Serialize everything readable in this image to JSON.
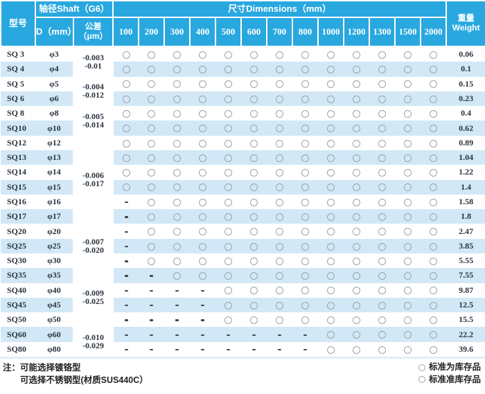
{
  "table": {
    "header": {
      "model": "型号",
      "shaft_group": "轴径Shaft（G6）",
      "diameter": "D（mm）",
      "tolerance_line1": "公差",
      "tolerance_line2": "（μm）",
      "dimensions_group": "尺寸Dimensions（mm）",
      "weight_line1": "重量",
      "weight_line2": "Weight",
      "dimension_columns": [
        "100",
        "200",
        "300",
        "400",
        "500",
        "600",
        "700",
        "800",
        "1000",
        "1200",
        "1300",
        "1500",
        "2000"
      ]
    },
    "rows": [
      {
        "model": "SQ 3",
        "diameter": "φ3",
        "avail": "ccccccccccccc",
        "weight": "0.06",
        "tol": {
          "span": 2,
          "l1": "-0.003",
          "l2": "-0.01"
        }
      },
      {
        "model": "SQ 4",
        "diameter": "φ4",
        "avail": "ccccccccccccc",
        "weight": "0.1"
      },
      {
        "model": "SQ 5",
        "diameter": "φ5",
        "avail": "ccccccccccccc",
        "weight": "0.15",
        "tol": {
          "span": 2,
          "l1": "-0.004",
          "l2": "-0.012"
        }
      },
      {
        "model": "SQ 6",
        "diameter": "φ6",
        "avail": "ccccccccccccc",
        "weight": "0.23"
      },
      {
        "model": "SQ 8",
        "diameter": "φ8",
        "avail": "ccccccccccccc",
        "weight": "0.4",
        "tol": {
          "span": 2,
          "l1": "-0.005",
          "l2": "-0.014"
        }
      },
      {
        "model": "SQ10",
        "diameter": "φ10",
        "avail": "ccccccccccccc",
        "weight": "0.62"
      },
      {
        "model": "SQ12",
        "diameter": "φ12",
        "avail": "ccccccccccccc",
        "weight": "0.89",
        "tol": {
          "span": 6,
          "l1": "-0.006",
          "l2": "-0.017"
        }
      },
      {
        "model": "SQ13",
        "diameter": "φ13",
        "avail": "ccccccccccccc",
        "weight": "1.04"
      },
      {
        "model": "SQ14",
        "diameter": "φ14",
        "avail": "ccccccccccccc",
        "weight": "1.22"
      },
      {
        "model": "SQ15",
        "diameter": "φ15",
        "avail": "ccccccccccccc",
        "weight": "1.4"
      },
      {
        "model": "SQ16",
        "diameter": "φ16",
        "avail": "dcccccccccccc",
        "weight": "1.58"
      },
      {
        "model": "SQ17",
        "diameter": "φ17",
        "avail": "dcccccccccccc",
        "weight": "1.8"
      },
      {
        "model": "SQ20",
        "diameter": "φ20",
        "avail": "dcccccccccccc",
        "weight": "2.47",
        "tol": {
          "span": 3,
          "l1": "-0.007",
          "l2": "-0.020"
        }
      },
      {
        "model": "SQ25",
        "diameter": "φ25",
        "avail": "dcccccccccccc",
        "weight": "3.85"
      },
      {
        "model": "SQ30",
        "diameter": "φ30",
        "avail": "dcccccccccccc",
        "weight": "5.55"
      },
      {
        "model": "SQ35",
        "diameter": "φ35",
        "avail": "ddccccccccccc",
        "weight": "7.55",
        "tol": {
          "span": 4,
          "l1": "-0.009",
          "l2": "-0.025"
        }
      },
      {
        "model": "SQ40",
        "diameter": "φ40",
        "avail": "ddddccccccccc",
        "weight": "9.87"
      },
      {
        "model": "SQ45",
        "diameter": "φ45",
        "avail": "ddddccccccccc",
        "weight": "12.5"
      },
      {
        "model": "SQ50",
        "diameter": "φ50",
        "avail": "ddddccccccccc",
        "weight": "15.5"
      },
      {
        "model": "SQ60",
        "diameter": "φ60",
        "avail": "ddddddddccccc",
        "weight": "22.2",
        "tol": {
          "span": 2,
          "l1": "-0.010",
          "l2": "-0.029"
        }
      },
      {
        "model": "SQ80",
        "diameter": "φ80",
        "avail": "ddddddddccccc",
        "weight": "39.6"
      }
    ]
  },
  "footer": {
    "note_label": "注：",
    "note_line1": "可能选择镀铬型",
    "note_line2": "可选择不锈钢型(材质SUS440C）",
    "legend": [
      {
        "text": "标准为库存品"
      },
      {
        "text": "标准准库存品"
      }
    ]
  },
  "colors": {
    "header_bg": "#29a8e0",
    "stripe_bg": "#d2e8f7",
    "circle_ring": "#9aa3ad",
    "dash": "#3f464d",
    "header_text": "#ffffff",
    "body_text": "#2a3440"
  }
}
